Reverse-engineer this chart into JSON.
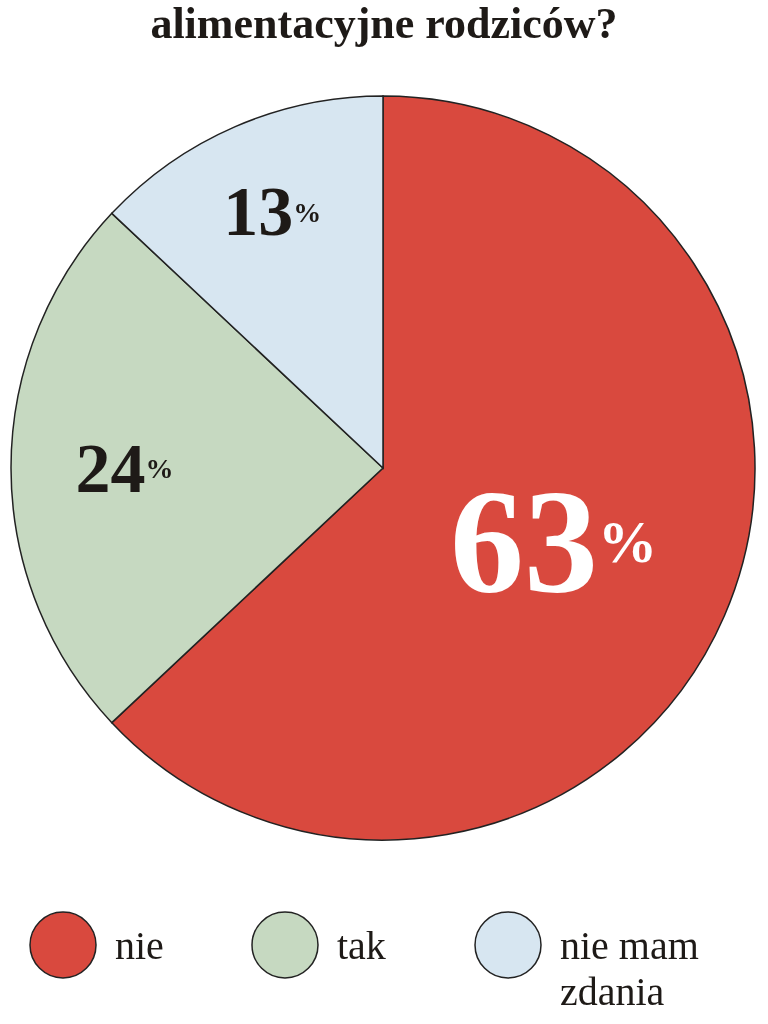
{
  "chart_data": {
    "type": "pie",
    "title": "alimentacyjne rodziców?",
    "categories": [
      "nie",
      "tak",
      "nie mam zdania"
    ],
    "values": [
      63,
      24,
      13
    ],
    "colors": [
      "#d9493e",
      "#c6d9c1",
      "#d7e6f1"
    ],
    "value_labels": [
      "63%",
      "24%",
      "13%"
    ],
    "legend": "bottom"
  }
}
